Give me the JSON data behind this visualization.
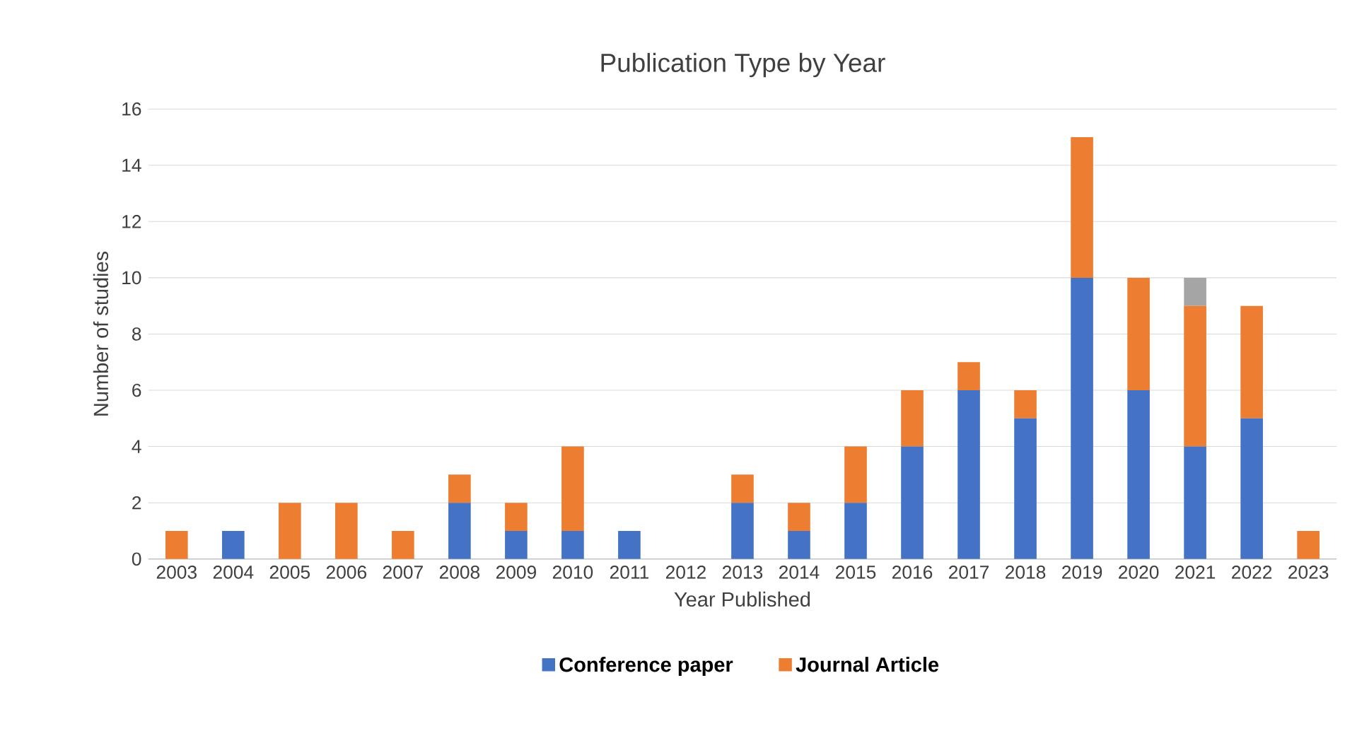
{
  "chart_data": {
    "type": "bar",
    "title": "Publication Type by Year",
    "xlabel": "Year Published",
    "ylabel": "Number of studies",
    "categories": [
      "2003",
      "2004",
      "2005",
      "2006",
      "2007",
      "2008",
      "2009",
      "2010",
      "2011",
      "2012",
      "2013",
      "2014",
      "2015",
      "2016",
      "2017",
      "2018",
      "2019",
      "2020",
      "2021",
      "2022",
      "2023"
    ],
    "stacked": true,
    "series": [
      {
        "name": "Conference paper",
        "color": "#4472c4",
        "values": [
          0,
          1,
          0,
          0,
          0,
          2,
          1,
          1,
          1,
          0,
          2,
          1,
          2,
          4,
          6,
          5,
          10,
          6,
          4,
          5,
          0
        ]
      },
      {
        "name": "Journal Article",
        "color": "#ed7d31",
        "values": [
          1,
          0,
          2,
          2,
          1,
          1,
          1,
          3,
          0,
          0,
          1,
          1,
          2,
          2,
          1,
          1,
          5,
          4,
          5,
          4,
          1
        ]
      },
      {
        "color": "#a5a5a5",
        "values": [
          0,
          0,
          0,
          0,
          0,
          0,
          0,
          0,
          0,
          0,
          0,
          0,
          0,
          0,
          0,
          0,
          0,
          0,
          1,
          0,
          0
        ]
      }
    ],
    "ylim": [
      0,
      16
    ],
    "yticks": [
      0,
      2,
      4,
      6,
      8,
      10,
      12,
      14,
      16
    ],
    "grid": "y",
    "legend": "bottom"
  }
}
